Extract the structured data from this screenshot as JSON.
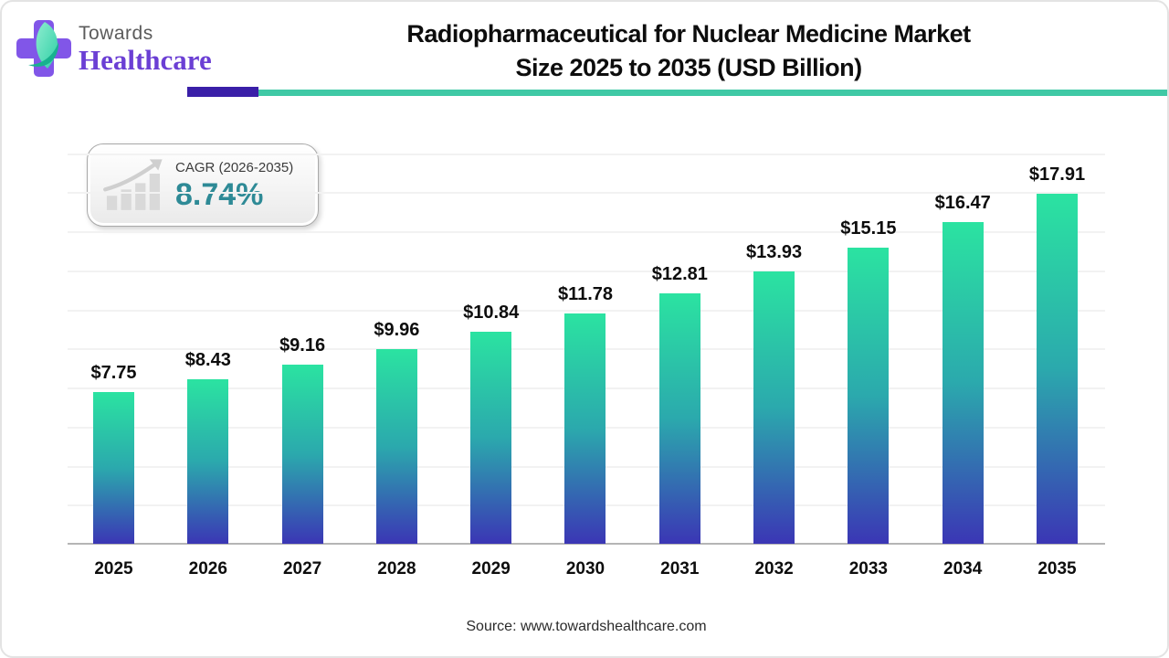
{
  "header": {
    "logo": {
      "towards": "Towards",
      "healthcare": "Healthcare"
    },
    "title_line1": "Radiopharmaceutical for Nuclear Medicine Market",
    "title_line2": "Size 2025 to 2035 (USD Billion)"
  },
  "cagr_badge": {
    "label": "CAGR (2026-2035)",
    "value": "8.74%"
  },
  "chart_data": {
    "type": "bar",
    "title": "Radiopharmaceutical for Nuclear Medicine Market Size 2025 to 2035 (USD Billion)",
    "categories": [
      "2025",
      "2026",
      "2027",
      "2028",
      "2029",
      "2030",
      "2031",
      "2032",
      "2033",
      "2034",
      "2035"
    ],
    "values": [
      7.75,
      8.43,
      9.16,
      9.96,
      10.84,
      11.78,
      12.81,
      13.93,
      15.15,
      16.47,
      17.91
    ],
    "value_labels": [
      "$7.75",
      "$8.43",
      "$9.16",
      "$9.96",
      "$10.84",
      "$11.78",
      "$12.81",
      "$13.93",
      "$15.15",
      "$16.47",
      "$17.91"
    ],
    "xlabel": "",
    "ylabel": "",
    "ylim": [
      0,
      22
    ],
    "gridline_values": [
      2,
      4,
      6,
      8,
      10,
      12,
      14,
      16,
      18,
      20
    ],
    "grid": true,
    "legend": "none",
    "bar_gradient": [
      "#2BE3A1",
      "#2BA9AD",
      "#3B36B5"
    ]
  },
  "footer": {
    "source": "Source: www.towardshealthcare.com"
  },
  "colors": {
    "bar_top": "#2BE3A1",
    "bar_mid": "#2BA9AD",
    "bar_bottom": "#3B36B5",
    "underline_purple": "#3A1FA8",
    "underline_teal": "#3FC9A5",
    "cagr_teal": "#2E8A96",
    "logo_purple": "#6B3FD4",
    "logo_cross": "#8156E8",
    "leaf_dark": "#18B18E"
  }
}
